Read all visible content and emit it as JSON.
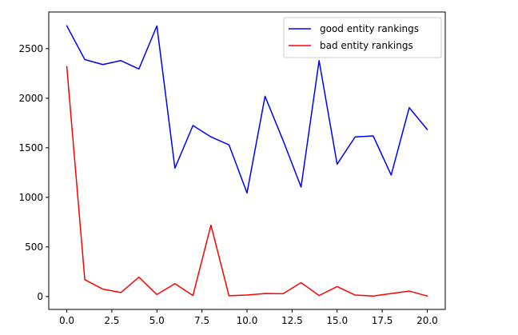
{
  "chart_data": {
    "type": "line",
    "title": "",
    "xlabel": "",
    "ylabel": "",
    "xlim": [
      -1.0,
      21.0
    ],
    "ylim": [
      -130,
      2870
    ],
    "x": [
      0,
      1,
      2,
      3,
      4,
      5,
      6,
      7,
      8,
      9,
      10,
      11,
      12,
      13,
      14,
      15,
      16,
      17,
      18,
      19,
      20
    ],
    "xticks": [
      0.0,
      2.5,
      5.0,
      7.5,
      10.0,
      12.5,
      15.0,
      17.5,
      20.0
    ],
    "xtick_labels": [
      "0.0",
      "2.5",
      "5.0",
      "7.5",
      "10.0",
      "12.5",
      "15.0",
      "17.5",
      "20.0"
    ],
    "yticks": [
      0,
      500,
      1000,
      1500,
      2000,
      2500
    ],
    "ytick_labels": [
      "0",
      "500",
      "1000",
      "1500",
      "2000",
      "2500"
    ],
    "grid": false,
    "legend_position": "top-right",
    "series": [
      {
        "name": "good entity rankings",
        "color": "#0000ff",
        "values": [
          2730,
          2390,
          2340,
          2380,
          2295,
          2730,
          1295,
          1725,
          1610,
          1530,
          1045,
          2020,
          1575,
          1105,
          2380,
          1335,
          1610,
          1620,
          1225,
          1905,
          1685
        ]
      },
      {
        "name": "bad entity rankings",
        "color": "#ff0000",
        "values": [
          2320,
          170,
          75,
          40,
          195,
          20,
          130,
          10,
          720,
          8,
          15,
          30,
          28,
          140,
          10,
          100,
          15,
          5,
          30,
          55,
          5
        ]
      }
    ]
  }
}
